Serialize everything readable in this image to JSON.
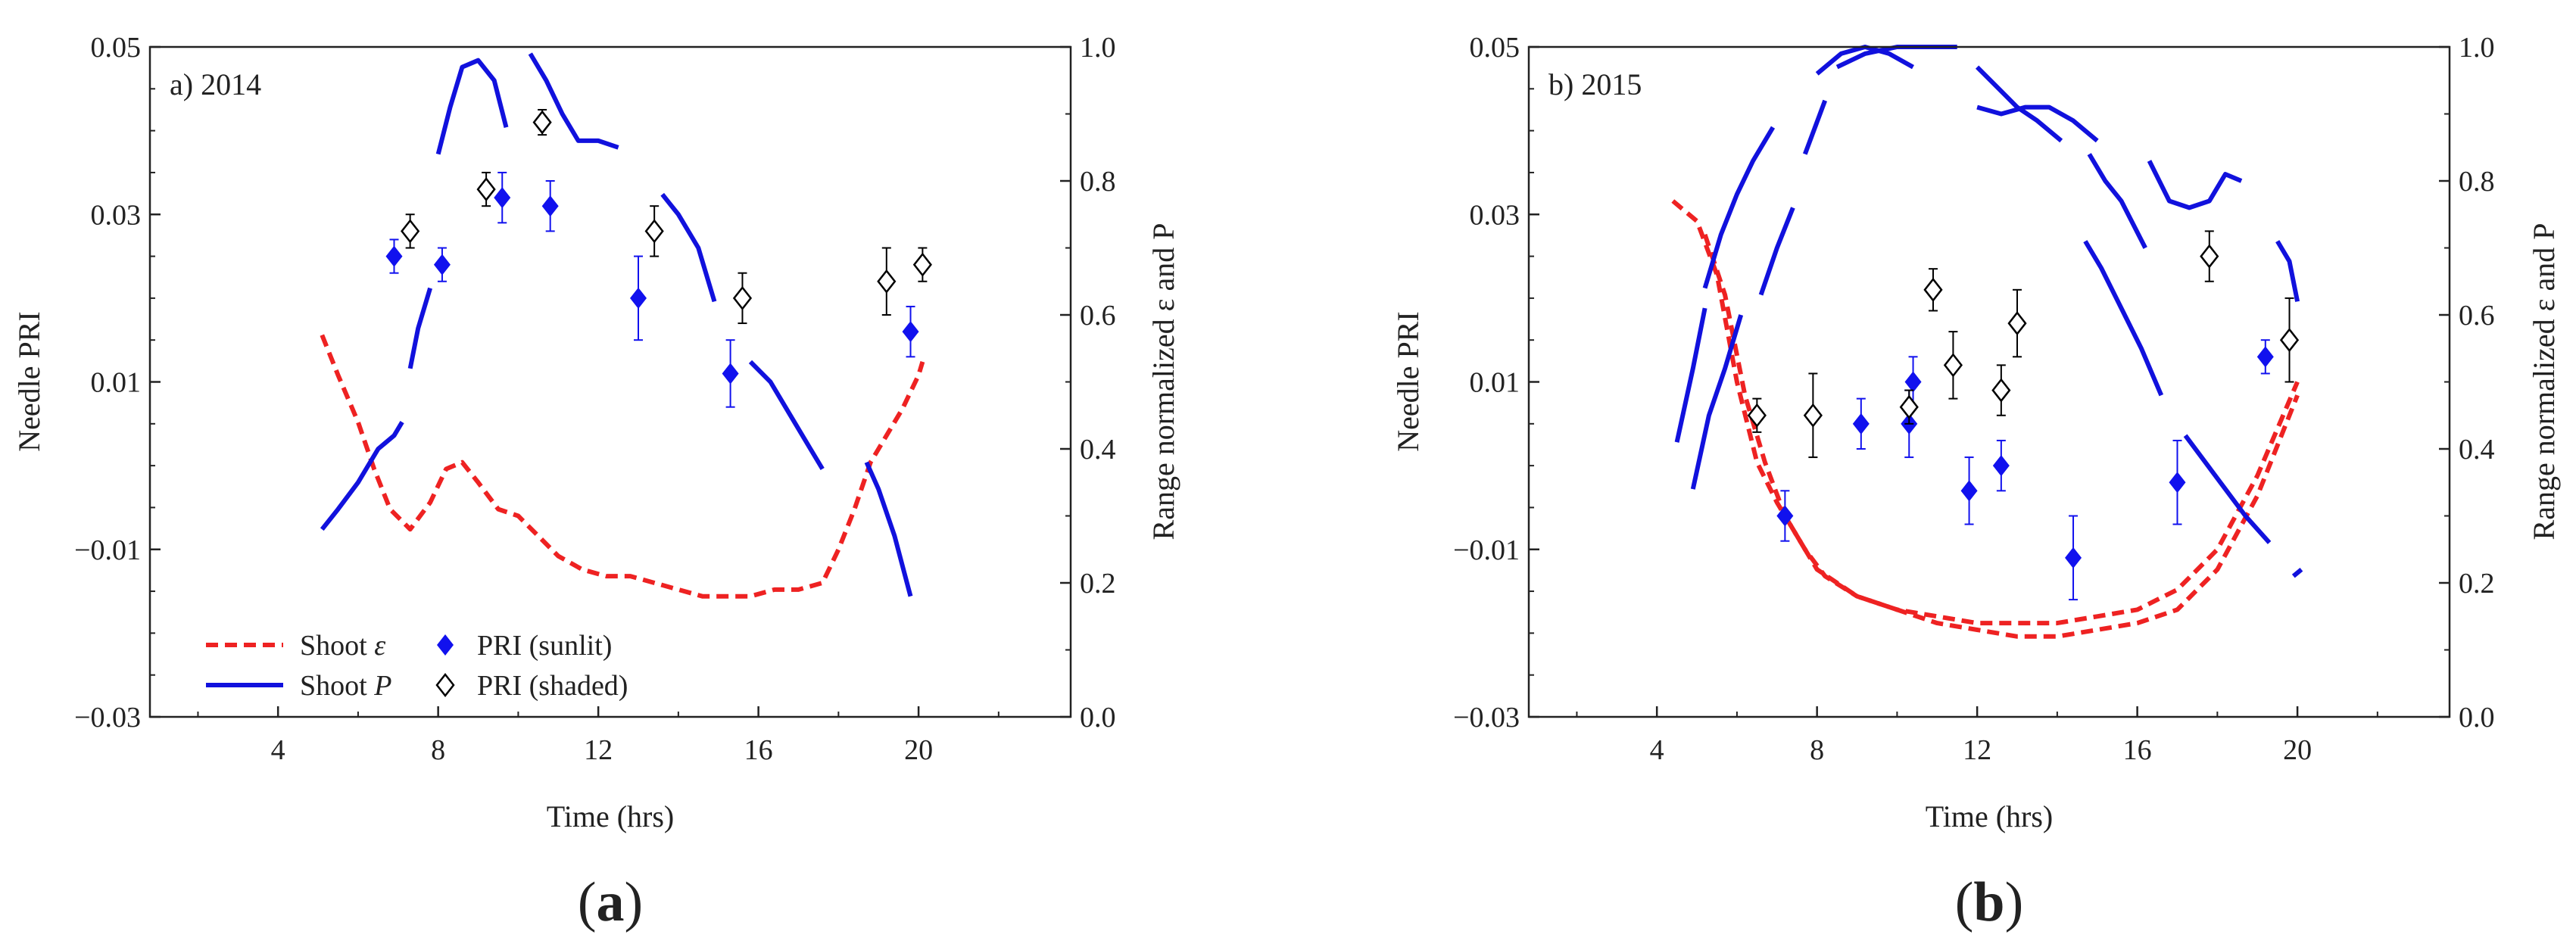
{
  "colors": {
    "epsilon": "#ee2222",
    "P": "#1111dd",
    "sunlit": "#1111ee",
    "shaded": "#000000",
    "axis": "#222222"
  },
  "legend": {
    "eps": "Shoot ε",
    "P": "Shoot P",
    "sunlit": "PRI (sunlit)",
    "shaded": "PRI (shaded)"
  },
  "chart_data": [
    {
      "type": "line",
      "panel_label": "a) 2014",
      "caption": "(a)",
      "caption_letter": "a",
      "xlabel": "Time (hrs)",
      "ylabel": "Needle PRI",
      "ylabel_right": "Range normalized ε and P",
      "xlim": [
        0.8,
        23.8
      ],
      "ylim": [
        -0.03,
        0.05
      ],
      "ylim_right": [
        0.0,
        1.0
      ],
      "xticks": [
        "4",
        "8",
        "12",
        "16",
        "20"
      ],
      "yticks": [
        "−0.03",
        "−0.01",
        "0.01",
        "0.03",
        "0.05"
      ],
      "yticks_right": [
        "0.0",
        "0.2",
        "0.4",
        "0.6",
        "0.8",
        "1.0"
      ],
      "series": [
        {
          "name": "Shoot ε",
          "axis": "right",
          "style": "dashed",
          "segments": [
            {
              "x": [
                5.1,
                5.5,
                6.0,
                6.4,
                6.8,
                7.3,
                7.8,
                8.2,
                8.6,
                9.0,
                9.5,
                10.0,
                10.5,
                11.0,
                11.6,
                12.2,
                12.8,
                13.4,
                14.0,
                14.6,
                15.2,
                15.8,
                16.4,
                17.0,
                17.6,
                18.0,
                18.4,
                18.8,
                19.2,
                19.6,
                20.0,
                20.1
              ],
              "y": [
                0.57,
                0.51,
                0.44,
                0.37,
                0.31,
                0.28,
                0.32,
                0.37,
                0.38,
                0.35,
                0.31,
                0.3,
                0.27,
                0.24,
                0.22,
                0.21,
                0.21,
                0.2,
                0.19,
                0.18,
                0.18,
                0.18,
                0.19,
                0.19,
                0.2,
                0.25,
                0.31,
                0.38,
                0.42,
                0.46,
                0.51,
                0.53
              ]
            }
          ]
        },
        {
          "name": "Shoot P",
          "axis": "right",
          "style": "solid",
          "segments": [
            {
              "x": [
                5.1,
                5.5,
                6.0,
                6.5,
                6.9,
                7.1
              ],
              "y": [
                0.28,
                0.31,
                0.35,
                0.4,
                0.42,
                0.44
              ]
            },
            {
              "x": [
                7.3,
                7.5,
                7.8
              ],
              "y": [
                0.52,
                0.58,
                0.64
              ]
            },
            {
              "x": [
                8.0,
                8.3,
                8.6,
                9.0,
                9.4,
                9.7
              ],
              "y": [
                0.84,
                0.91,
                0.97,
                0.98,
                0.95,
                0.88
              ]
            },
            {
              "x": [
                10.3,
                10.7,
                11.1,
                11.5,
                12.0,
                12.5
              ],
              "y": [
                0.99,
                0.95,
                0.9,
                0.86,
                0.86,
                0.85
              ]
            },
            {
              "x": [
                13.6,
                14.0,
                14.5,
                14.9
              ],
              "y": [
                0.78,
                0.75,
                0.7,
                0.62
              ]
            },
            {
              "x": [
                15.8,
                16.3,
                16.8,
                17.3,
                17.6
              ],
              "y": [
                0.53,
                0.5,
                0.45,
                0.4,
                0.37
              ]
            },
            {
              "x": [
                18.7,
                19.0,
                19.4,
                19.8
              ],
              "y": [
                0.38,
                0.34,
                0.27,
                0.18
              ]
            }
          ]
        },
        {
          "name": "PRI (sunlit)",
          "axis": "left",
          "type": "scatter",
          "marker": "filled-diamond",
          "x": [
            6.9,
            8.1,
            9.6,
            10.8,
            13.0,
            15.3,
            19.8
          ],
          "y": [
            0.025,
            0.024,
            0.032,
            0.031,
            0.02,
            0.011,
            0.016
          ],
          "err": [
            0.002,
            0.002,
            0.003,
            0.003,
            0.005,
            0.004,
            0.003
          ]
        },
        {
          "name": "PRI (shaded)",
          "axis": "left",
          "type": "scatter",
          "marker": "open-diamond",
          "x": [
            7.3,
            9.2,
            10.6,
            13.4,
            15.6,
            19.2,
            20.1
          ],
          "y": [
            0.028,
            0.033,
            0.041,
            0.028,
            0.02,
            0.022,
            0.024
          ],
          "err": [
            0.002,
            0.002,
            0.0015,
            0.003,
            0.003,
            0.004,
            0.002
          ]
        }
      ]
    },
    {
      "type": "line",
      "panel_label": "b) 2015",
      "caption": "(b)",
      "caption_letter": "b",
      "xlabel": "Time (hrs)",
      "ylabel": "Needle PRI",
      "ylabel_right": "Range normalized ε and P",
      "xlim": [
        0.8,
        23.8
      ],
      "ylim": [
        -0.03,
        0.05
      ],
      "ylim_right": [
        0.0,
        1.0
      ],
      "xticks": [
        "4",
        "8",
        "12",
        "16",
        "20"
      ],
      "yticks": [
        "−0.03",
        "−0.01",
        "0.01",
        "0.03",
        "0.05"
      ],
      "yticks_right": [
        "0.0",
        "0.2",
        "0.4",
        "0.6",
        "0.8",
        "1.0"
      ],
      "series": [
        {
          "name": "Shoot ε",
          "axis": "right",
          "style": "dashed",
          "segments": [
            {
              "x": [
                4.4,
                5.0,
                5.5,
                6.0,
                6.5,
                7.0,
                7.5,
                8.0,
                9.0,
                10.0,
                11.0,
                12.0,
                13.0,
                14.0,
                15.0,
                16.0,
                17.0,
                18.0,
                19.0,
                20.0
              ],
              "y": [
                0.77,
                0.74,
                0.66,
                0.5,
                0.38,
                0.32,
                0.27,
                0.22,
                0.18,
                0.16,
                0.14,
                0.13,
                0.12,
                0.12,
                0.13,
                0.14,
                0.16,
                0.22,
                0.33,
                0.48
              ]
            },
            {
              "x": [
                5.2,
                5.7,
                6.2,
                6.7,
                7.2,
                7.7,
                8.2,
                9.0,
                10.0,
                11.0,
                12.0,
                13.0,
                14.0,
                15.0,
                16.0,
                17.0,
                18.0,
                19.0,
                20.0
              ],
              "y": [
                0.72,
                0.63,
                0.48,
                0.38,
                0.3,
                0.25,
                0.21,
                0.18,
                0.16,
                0.15,
                0.14,
                0.14,
                0.14,
                0.15,
                0.16,
                0.19,
                0.25,
                0.36,
                0.5
              ]
            }
          ]
        },
        {
          "name": "Shoot P",
          "axis": "right",
          "style": "solid",
          "segments": [
            {
              "x": [
                4.5,
                4.9,
                5.2
              ],
              "y": [
                0.41,
                0.52,
                0.61
              ]
            },
            {
              "x": [
                4.9,
                5.3,
                5.7,
                6.1
              ],
              "y": [
                0.34,
                0.45,
                0.52,
                0.6
              ]
            },
            {
              "x": [
                5.2,
                5.6,
                6.0,
                6.4,
                6.9
              ],
              "y": [
                0.64,
                0.72,
                0.78,
                0.83,
                0.88
              ]
            },
            {
              "x": [
                6.6,
                7.0,
                7.4
              ],
              "y": [
                0.63,
                0.7,
                0.76
              ]
            },
            {
              "x": [
                7.7,
                8.2
              ],
              "y": [
                0.84,
                0.92
              ]
            },
            {
              "x": [
                8.0,
                8.6,
                9.2,
                9.8,
                10.4
              ],
              "y": [
                0.96,
                0.99,
                1.0,
                0.99,
                0.97
              ]
            },
            {
              "x": [
                8.5,
                9.2,
                10.0,
                11.0,
                11.5
              ],
              "y": [
                0.97,
                0.99,
                1.0,
                1.0,
                1.0
              ]
            },
            {
              "x": [
                12.0,
                12.5,
                13.0,
                13.5,
                14.1
              ],
              "y": [
                0.97,
                0.94,
                0.91,
                0.89,
                0.86
              ]
            },
            {
              "x": [
                12.0,
                12.6,
                13.2,
                13.8,
                14.4,
                15.0
              ],
              "y": [
                0.91,
                0.9,
                0.91,
                0.91,
                0.89,
                0.86
              ]
            },
            {
              "x": [
                14.8,
                15.2,
                15.6,
                16.2
              ],
              "y": [
                0.84,
                0.8,
                0.77,
                0.7
              ]
            },
            {
              "x": [
                14.7,
                15.1,
                15.6,
                16.1,
                16.6
              ],
              "y": [
                0.71,
                0.67,
                0.61,
                0.55,
                0.48
              ]
            },
            {
              "x": [
                16.3,
                16.8,
                17.3,
                17.8,
                18.2,
                18.6
              ],
              "y": [
                0.83,
                0.77,
                0.76,
                0.77,
                0.81,
                0.8
              ]
            },
            {
              "x": [
                18.9
              ],
              "y": [
                0.77
              ]
            },
            {
              "x": [
                19.5,
                19.8,
                20.0
              ],
              "y": [
                0.71,
                0.68,
                0.62
              ]
            },
            {
              "x": [
                17.2,
                17.7,
                18.2,
                18.7,
                19.3
              ],
              "y": [
                0.42,
                0.38,
                0.34,
                0.3,
                0.26
              ]
            },
            {
              "x": [
                19.9,
                20.1
              ],
              "y": [
                0.21,
                0.22
              ]
            }
          ]
        },
        {
          "name": "PRI (sunlit)",
          "axis": "left",
          "type": "scatter",
          "marker": "filled-diamond",
          "x": [
            7.2,
            9.1,
            10.3,
            10.4,
            11.8,
            12.6,
            14.4,
            17.0,
            19.2
          ],
          "y": [
            -0.006,
            0.005,
            0.005,
            0.01,
            -0.003,
            0.0,
            -0.011,
            -0.002,
            0.013
          ],
          "err": [
            0.003,
            0.003,
            0.004,
            0.003,
            0.004,
            0.003,
            0.005,
            0.005,
            0.002
          ]
        },
        {
          "name": "PRI (shaded)",
          "axis": "left",
          "type": "scatter",
          "marker": "open-diamond",
          "x": [
            6.5,
            7.9,
            10.3,
            10.9,
            11.4,
            12.6,
            13.0,
            17.8,
            19.8
          ],
          "y": [
            0.006,
            0.006,
            0.007,
            0.021,
            0.012,
            0.009,
            0.017,
            0.025,
            0.015
          ],
          "err": [
            0.002,
            0.005,
            0.002,
            0.0025,
            0.004,
            0.003,
            0.004,
            0.003,
            0.005
          ]
        }
      ]
    }
  ]
}
